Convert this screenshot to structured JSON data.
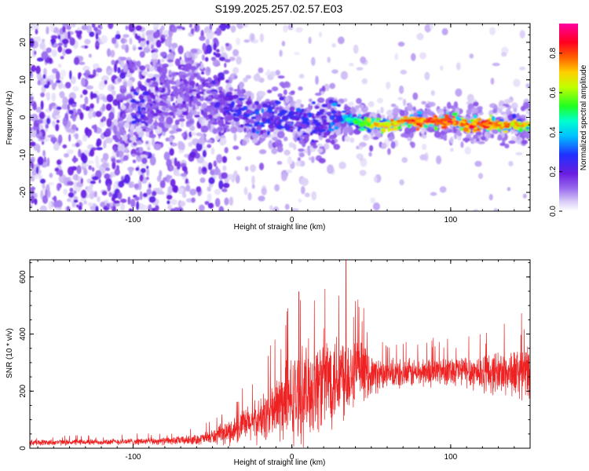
{
  "title": "S199.2025.257.02.57.E03",
  "colors": {
    "snr_line": "#ee2222",
    "spectro_base": "#cfc0f5",
    "spectro_mid": "#6a1de0",
    "axis": "#000000"
  },
  "chart_data": [
    {
      "type": "heatmap",
      "title": "S199.2025.257.02.57.E03",
      "xlabel": "Height of straight line (km)",
      "ylabel": "Frequency (Hz)",
      "xlim": [
        -165,
        150
      ],
      "ylim": [
        -25,
        25
      ],
      "xticks": [
        -100,
        0,
        100
      ],
      "xtick_labels": [
        "-100",
        "0",
        "100"
      ],
      "yticks": [
        -20,
        -10,
        0,
        10,
        20
      ],
      "ytick_labels": [
        "-20",
        "-10",
        "0",
        "10",
        "20"
      ],
      "colorbar": {
        "label": "Normalized spectral amplitude",
        "range": [
          0,
          0.95
        ],
        "ticks": [
          0.0,
          0.2,
          0.4,
          0.6,
          0.8
        ],
        "tick_labels": [
          "0.0",
          "0.2",
          "0.4",
          "0.6",
          "0.8"
        ],
        "colormap": "rainbow (violet-blue-cyan-green-yellow-red-magenta)"
      },
      "ridge": {
        "description": "Spectral energy ridge near 0 Hz, scattered noise left of -40 km, concentrated near 0 Hz to the right",
        "x": [
          -100,
          -80,
          -60,
          -45,
          -30,
          -20,
          -10,
          0,
          10,
          20,
          30,
          40,
          50,
          60,
          70,
          80,
          90,
          100,
          110,
          120,
          130,
          140,
          150
        ],
        "y": [
          1,
          5,
          7,
          4,
          1,
          0,
          1,
          0,
          -1,
          -2,
          0,
          -1,
          -2,
          -2,
          -1,
          -1,
          -1,
          -1,
          -2,
          -2,
          -2,
          -2,
          -2
        ],
        "amplitude": [
          0.3,
          0.2,
          0.2,
          0.25,
          0.3,
          0.35,
          0.3,
          0.35,
          0.3,
          0.3,
          0.4,
          0.55,
          0.7,
          0.75,
          0.8,
          0.85,
          0.85,
          0.85,
          0.85,
          0.85,
          0.8,
          0.75,
          0.7
        ]
      }
    },
    {
      "type": "line",
      "title": "",
      "xlabel": "Height of straight line (km)",
      "ylabel": "SNR (10 * v/v)",
      "xlim": [
        -165,
        150
      ],
      "ylim": [
        0,
        660
      ],
      "xticks": [
        -100,
        0,
        100
      ],
      "xtick_labels": [
        "-100",
        "0",
        "100"
      ],
      "yticks": [
        0,
        200,
        400,
        600
      ],
      "ytick_labels": [
        "0",
        "200",
        "400",
        "600"
      ],
      "series": [
        {
          "name": "SNR",
          "description": "Dense noisy trace; envelope mean / amplitude at each height",
          "x": [
            -165,
            -120,
            -80,
            -60,
            -50,
            -40,
            -30,
            -20,
            -10,
            0,
            10,
            20,
            30,
            40,
            50,
            60,
            80,
            100,
            120,
            140,
            150
          ],
          "mean": [
            20,
            22,
            25,
            30,
            40,
            55,
            80,
            100,
            140,
            170,
            200,
            240,
            260,
            270,
            260,
            255,
            265,
            275,
            265,
            265,
            260
          ],
          "spread": [
            12,
            12,
            15,
            20,
            30,
            50,
            70,
            90,
            140,
            180,
            200,
            200,
            200,
            150,
            80,
            60,
            60,
            60,
            80,
            100,
            120
          ],
          "peak": {
            "x": 34,
            "y": 660
          }
        }
      ]
    }
  ]
}
